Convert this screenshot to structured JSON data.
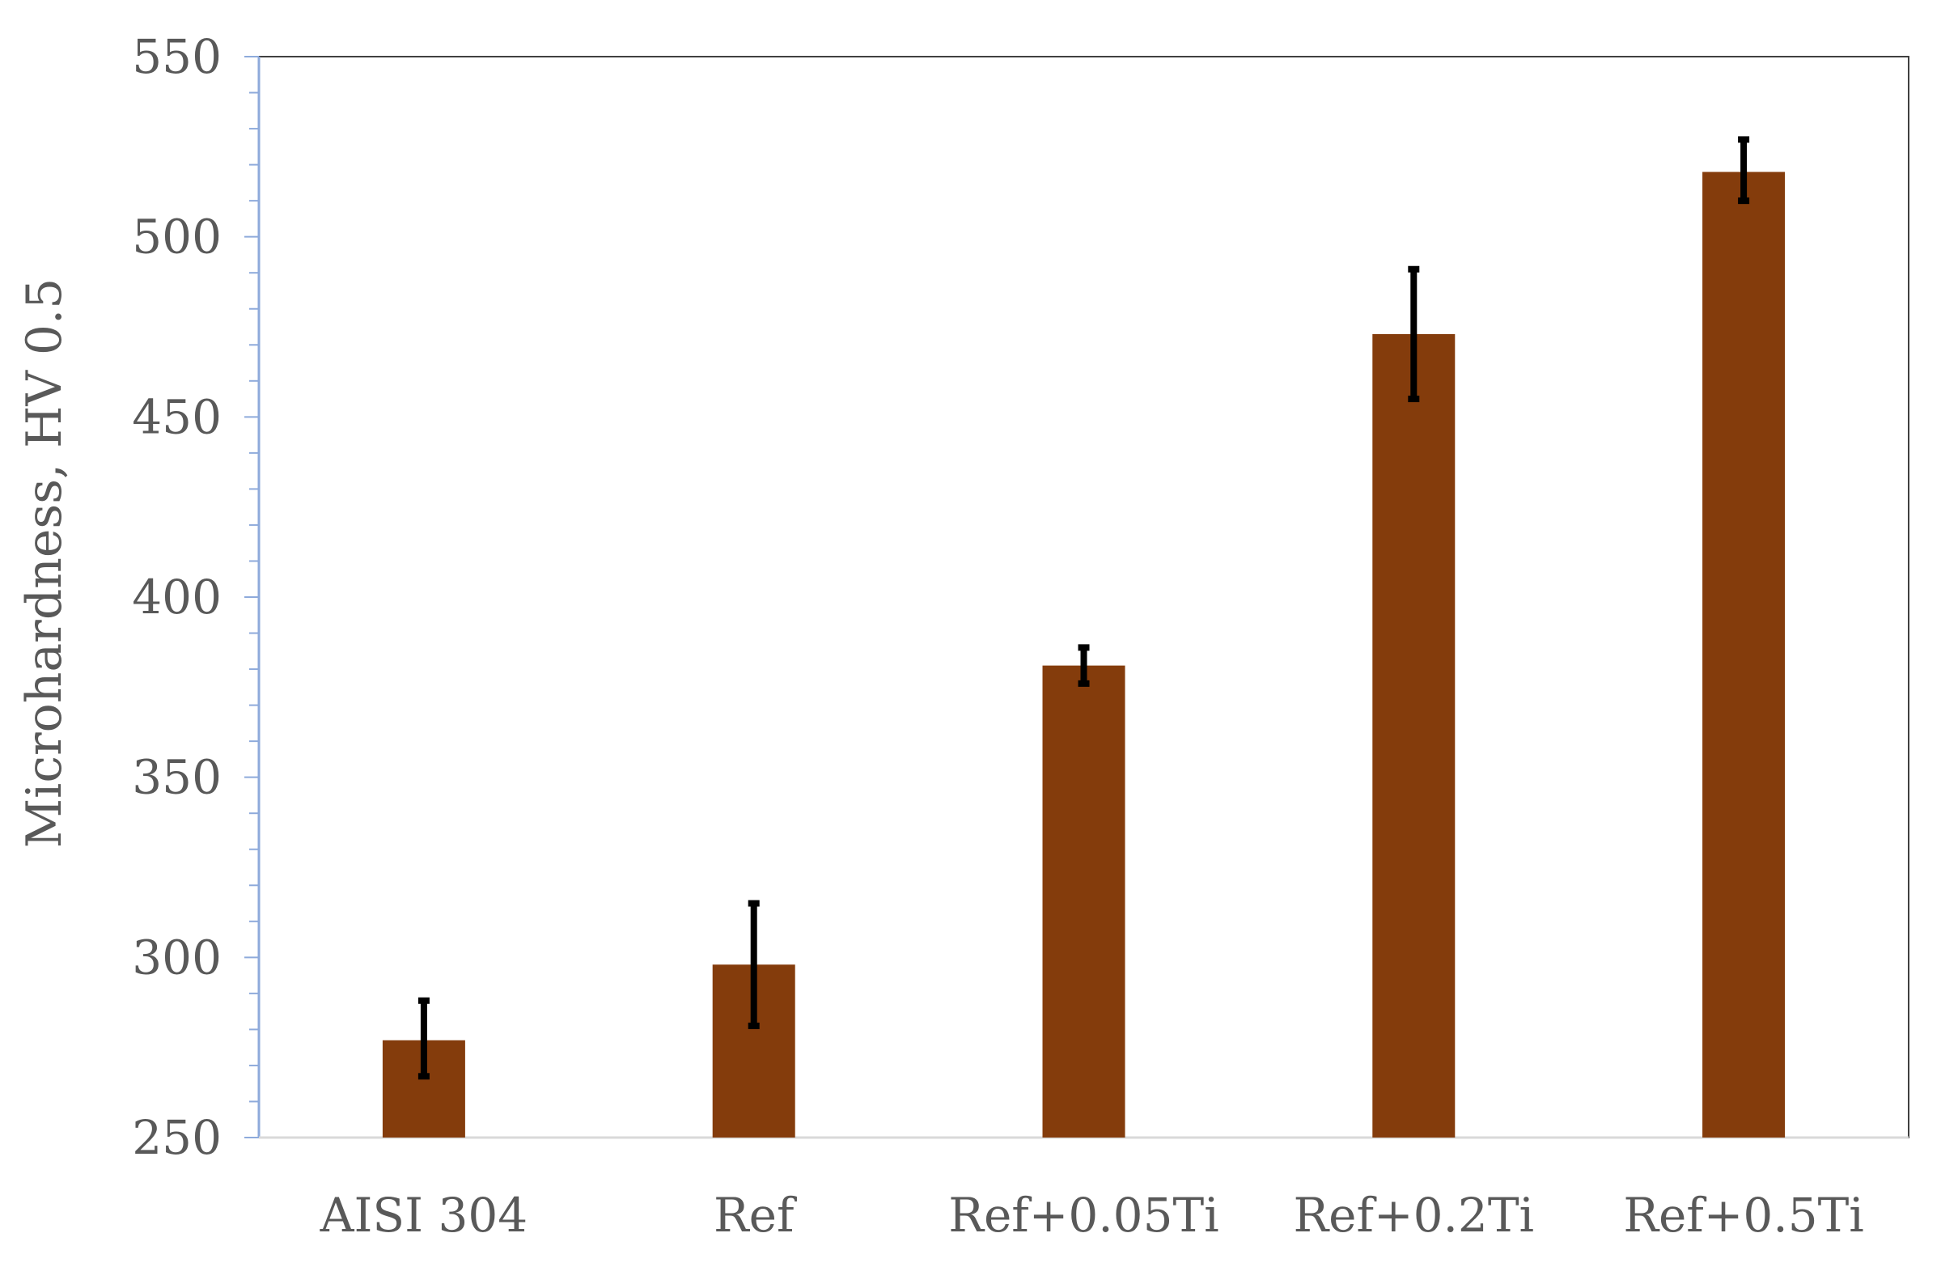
{
  "chart_data": {
    "type": "bar",
    "title": "",
    "xlabel": "",
    "ylabel": "Microhardness, HV 0.5",
    "categories": [
      "AISI 304",
      "Ref",
      "Ref+0.05Ti",
      "Ref+0.2Ti",
      "Ref+0.5Ti"
    ],
    "values": [
      277,
      298,
      381,
      473,
      518
    ],
    "error_low": [
      267,
      281,
      376,
      455,
      510
    ],
    "error_high": [
      288,
      315,
      386,
      491,
      527
    ],
    "ylim": [
      250,
      550
    ],
    "yticks": [
      "250",
      "300",
      "350",
      "400",
      "450",
      "500",
      "550"
    ],
    "grid": false,
    "legend": "none",
    "bar_color": "#843C0C",
    "error_bar_color": "#000000",
    "axis_color": "#8EAADB",
    "frame_color": "#404040"
  }
}
